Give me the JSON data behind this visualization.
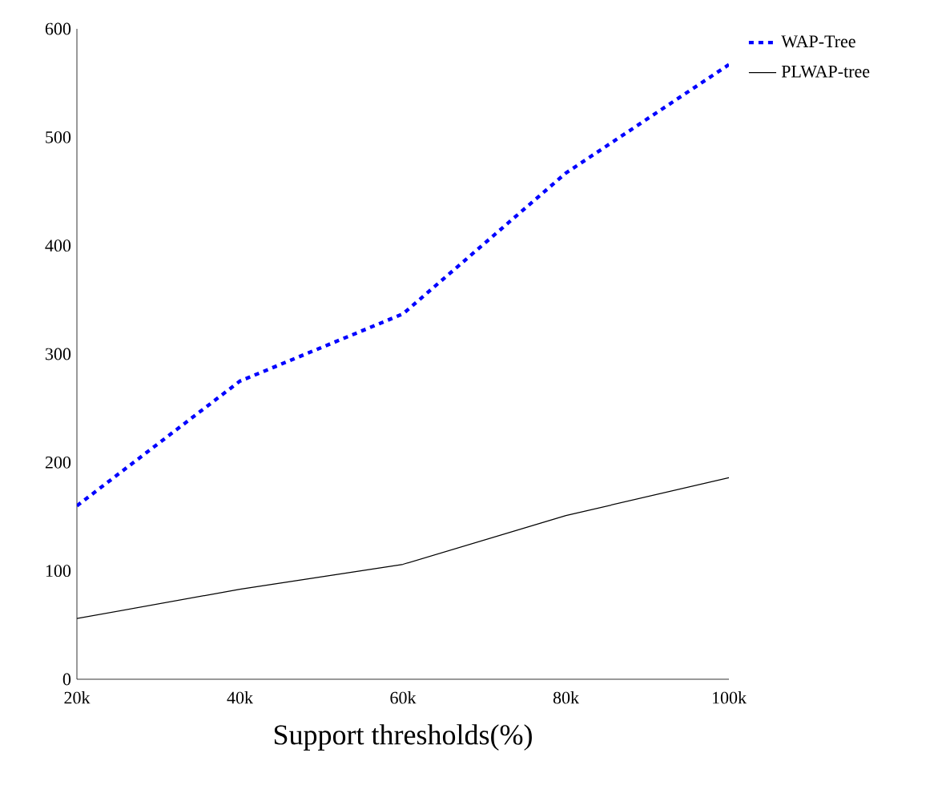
{
  "chart_data": {
    "type": "line",
    "xlabel": "Support thresholds(%)",
    "categories": [
      "20k",
      "40k",
      "60k",
      "80k",
      "100k"
    ],
    "series": [
      {
        "name": "WAP-Tree",
        "color": "#0000ff",
        "line_style": "dashed",
        "values": [
          160,
          275,
          337,
          467,
          567
        ]
      },
      {
        "name": "PLWAP-tree",
        "color": "#000000",
        "line_style": "solid",
        "values": [
          56,
          83,
          106,
          151,
          186
        ]
      }
    ],
    "ylim": [
      0,
      600
    ],
    "yticks": [
      0,
      100,
      200,
      300,
      400,
      500,
      600
    ],
    "legend": "top right",
    "grid": false,
    "marker": "none"
  }
}
